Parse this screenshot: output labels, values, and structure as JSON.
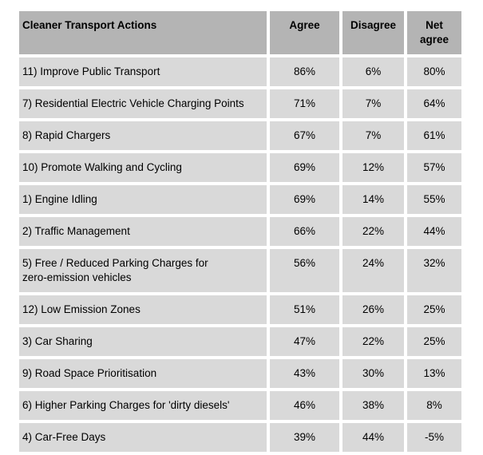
{
  "colors": {
    "page_background": "#ffffff",
    "header_background": "#b4b4b4",
    "row_background": "#d9d9d9",
    "text": "#000000"
  },
  "table": {
    "columns": [
      "Cleaner Transport Actions",
      "Agree",
      "Disagree",
      "Net agree"
    ],
    "rows": [
      {
        "action": "11) Improve Public Transport",
        "agree": "86%",
        "disagree": "6%",
        "net_agree": "80%"
      },
      {
        "action": "7) Residential Electric Vehicle Charging Points",
        "agree": "71%",
        "disagree": "7%",
        "net_agree": "64%"
      },
      {
        "action": "8) Rapid Chargers",
        "agree": "67%",
        "disagree": "7%",
        "net_agree": "61%"
      },
      {
        "action": "10) Promote Walking and Cycling",
        "agree": "69%",
        "disagree": "12%",
        "net_agree": "57%"
      },
      {
        "action": "1) Engine Idling",
        "agree": "69%",
        "disagree": "14%",
        "net_agree": "55%"
      },
      {
        "action": "2) Traffic Management",
        "agree": "66%",
        "disagree": "22%",
        "net_agree": "44%"
      },
      {
        "action": "5) Free / Reduced Parking Charges for\nzero-emission vehicles",
        "agree": "56%",
        "disagree": "24%",
        "net_agree": "32%"
      },
      {
        "action": "12) Low Emission Zones",
        "agree": "51%",
        "disagree": "26%",
        "net_agree": "25%"
      },
      {
        "action": "3) Car Sharing",
        "agree": "47%",
        "disagree": "22%",
        "net_agree": "25%"
      },
      {
        "action": "9) Road Space Prioritisation",
        "agree": "43%",
        "disagree": "30%",
        "net_agree": "13%"
      },
      {
        "action": "6) Higher Parking Charges for 'dirty diesels'",
        "agree": "46%",
        "disagree": "38%",
        "net_agree": "8%"
      },
      {
        "action": "4) Car-Free Days",
        "agree": "39%",
        "disagree": "44%",
        "net_agree": "-5%"
      }
    ]
  },
  "chart_data": {
    "type": "table",
    "title": "Cleaner Transport Actions",
    "columns": [
      "Cleaner Transport Actions",
      "Agree",
      "Disagree",
      "Net agree"
    ],
    "categories": [
      "11) Improve Public Transport",
      "7) Residential Electric Vehicle Charging Points",
      "8) Rapid Chargers",
      "10) Promote Walking and Cycling",
      "1) Engine Idling",
      "2) Traffic Management",
      "5) Free / Reduced Parking Charges for zero-emission vehicles",
      "12) Low Emission Zones",
      "3) Car Sharing",
      "9) Road Space Prioritisation",
      "6) Higher Parking Charges for 'dirty diesels'",
      "4) Car-Free Days"
    ],
    "series": [
      {
        "name": "Agree",
        "values": [
          86,
          71,
          67,
          69,
          69,
          66,
          56,
          51,
          47,
          43,
          46,
          39
        ]
      },
      {
        "name": "Disagree",
        "values": [
          6,
          7,
          7,
          12,
          14,
          22,
          24,
          26,
          22,
          30,
          38,
          44
        ]
      },
      {
        "name": "Net agree",
        "values": [
          80,
          64,
          61,
          57,
          55,
          44,
          32,
          25,
          25,
          13,
          8,
          -5
        ]
      }
    ]
  }
}
